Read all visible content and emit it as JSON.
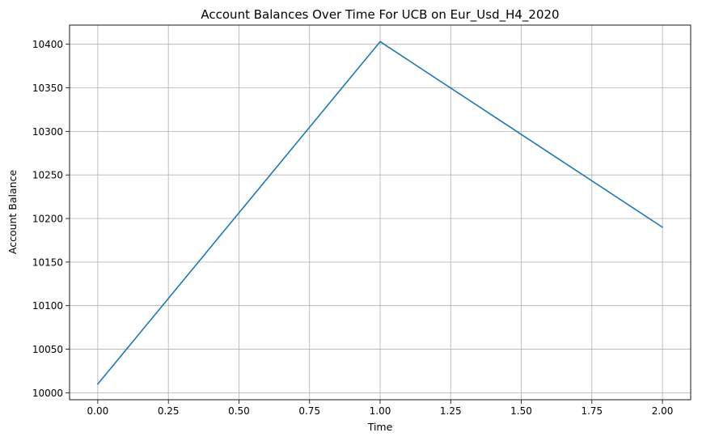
{
  "chart_data": {
    "type": "line",
    "title": "Account Balances Over Time For UCB on Eur_Usd_H4_2020",
    "xlabel": "Time",
    "ylabel": "Account Balance",
    "x": [
      0,
      1,
      2
    ],
    "series": [
      {
        "values": [
          10010,
          10403,
          10190
        ],
        "color": "#1f77b4"
      }
    ],
    "xlim": [
      -0.1,
      2.1
    ],
    "ylim": [
      9992,
      10422
    ],
    "x_ticks": [
      0,
      0.25,
      0.5,
      0.75,
      1.0,
      1.25,
      1.5,
      1.75,
      2.0
    ],
    "x_tick_labels": [
      "0.00",
      "0.25",
      "0.50",
      "0.75",
      "1.00",
      "1.25",
      "1.50",
      "1.75",
      "2.00"
    ],
    "y_ticks": [
      10000,
      10050,
      10100,
      10150,
      10200,
      10250,
      10300,
      10350,
      10400
    ],
    "y_tick_labels": [
      "10000",
      "10050",
      "10100",
      "10150",
      "10200",
      "10250",
      "10300",
      "10350",
      "10400"
    ],
    "grid": true,
    "legend": "none"
  }
}
